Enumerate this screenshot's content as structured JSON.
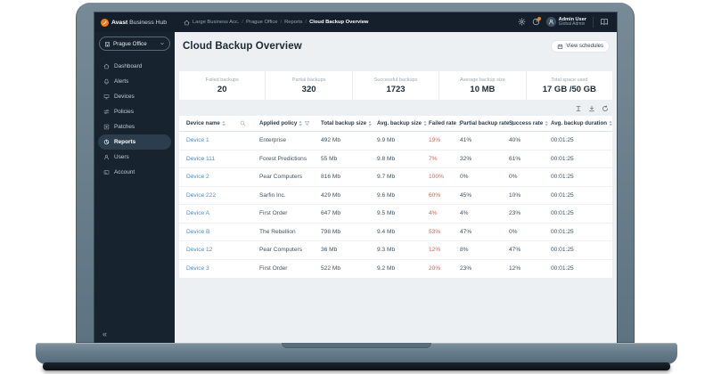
{
  "colors": {
    "accent_orange": "#ff7800",
    "link_blue": "#4a8fd2",
    "danger_red": "#e0604a",
    "topbar_navy": "#141f2b",
    "sidebar_navy": "#17232f",
    "main_background": "#edf0f2",
    "laptop_frame": "#6a8090"
  },
  "topbar": {
    "logo": {
      "brand_bold": "Avast",
      "brand_rest": "Business Hub",
      "icon": "avast-logo-icon"
    },
    "breadcrumbs": [
      {
        "label": "Large Business Acc."
      },
      {
        "label": "Prague Office"
      },
      {
        "label": "Reports"
      },
      {
        "label": "Cloud Backup Overview",
        "current": true
      }
    ],
    "user": {
      "name": "Admin User",
      "role": "Global Admin"
    }
  },
  "sidebar": {
    "site_selector": {
      "label": "Prague Office",
      "icon": "building-icon"
    },
    "items": [
      {
        "label": "Dashboard",
        "icon": "home-icon"
      },
      {
        "label": "Alerts",
        "icon": "bell-icon"
      },
      {
        "label": "Devices",
        "icon": "monitor-icon"
      },
      {
        "label": "Policies",
        "icon": "sliders-icon"
      },
      {
        "label": "Patches",
        "icon": "patches-icon"
      },
      {
        "label": "Reports",
        "icon": "pie-chart-icon",
        "active": true
      },
      {
        "label": "Users",
        "icon": "person-icon"
      },
      {
        "label": "Account",
        "icon": "card-icon"
      }
    ],
    "collapse_glyph": "«"
  },
  "main": {
    "title": "Cloud Backup Overview",
    "view_schedules_label": "View schedules",
    "stats": [
      {
        "label": "Failed backups",
        "value": "20"
      },
      {
        "label": "Partial backups",
        "value": "320"
      },
      {
        "label": "Successful backups",
        "value": "1723"
      },
      {
        "label": "Average backup size",
        "value": "10 MB"
      },
      {
        "label": "Total space used",
        "value": "17 GB /50 GB"
      }
    ],
    "table": {
      "columns": [
        {
          "label": "Device name",
          "trailing_icon": "search-icon"
        },
        {
          "label": "Applied policy",
          "trailing_icon": "filter-icon"
        },
        {
          "label": "Total backup size"
        },
        {
          "label": "Avg. backup size"
        },
        {
          "label": "Failed rate"
        },
        {
          "label": "Partial backup rate"
        },
        {
          "label": "Success rate"
        },
        {
          "label": "Avg. backup duration"
        }
      ],
      "rows": [
        {
          "device": "Device 1",
          "policy": "Enterprise",
          "total": "492 Mb",
          "avg": "9.9 Mb",
          "failed": "19%",
          "partial": "41%",
          "success": "40%",
          "duration": "00:01:25"
        },
        {
          "device": "Device 111",
          "policy": "Forest Predictions",
          "total": "55 Mb",
          "avg": "9.8 Mb",
          "failed": "7%",
          "partial": "32%",
          "success": "61%",
          "duration": "00:01:25"
        },
        {
          "device": "Device 2",
          "policy": "Pear Computers",
          "total": "816 Mb",
          "avg": "9.7 Mb",
          "failed": "100%",
          "partial": "0%",
          "success": "0%",
          "duration": "00:01:25"
        },
        {
          "device": "Device 222",
          "policy": "Sarfin Inc.",
          "total": "429 Mb",
          "avg": "9.6 Mb",
          "failed": "60%",
          "partial": "45%",
          "success": "10%",
          "duration": "00:01:25"
        },
        {
          "device": "Device A",
          "policy": "First Order",
          "total": "647 Mb",
          "avg": "9.5 Mb",
          "failed": "4%",
          "partial": "4%",
          "success": "23%",
          "duration": "00:01:25"
        },
        {
          "device": "Device B",
          "policy": "The Rebellion",
          "total": "798 Mb",
          "avg": "9.4 Mb",
          "failed": "53%",
          "partial": "47%",
          "success": "0%",
          "duration": "00:01:25"
        },
        {
          "device": "Device 12",
          "policy": "Pear Computers",
          "total": "36 Mb",
          "avg": "9.3 Mb",
          "failed": "12%",
          "partial": "8%",
          "success": "47%",
          "duration": "00:01:25"
        },
        {
          "device": "Device 3",
          "policy": "First Order",
          "total": "522 Mb",
          "avg": "9.2 Mb",
          "failed": "20%",
          "partial": "23%",
          "success": "12%",
          "duration": "00:01:25"
        }
      ],
      "toolbar_icons": [
        "columns-icon",
        "download-icon",
        "refresh-icon"
      ]
    }
  }
}
